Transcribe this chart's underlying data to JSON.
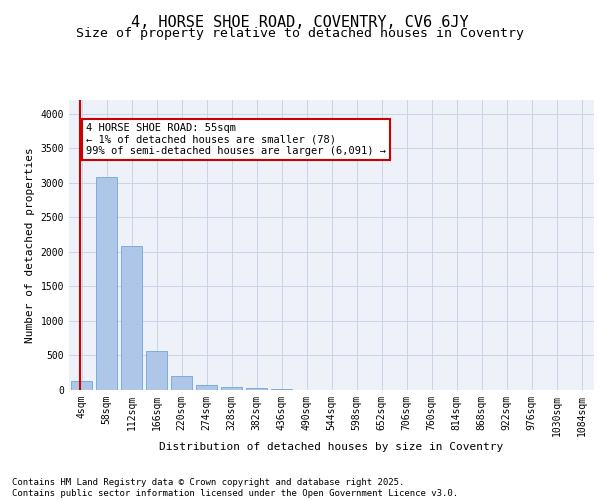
{
  "title": "4, HORSE SHOE ROAD, COVENTRY, CV6 6JY",
  "subtitle": "Size of property relative to detached houses in Coventry",
  "xlabel": "Distribution of detached houses by size in Coventry",
  "ylabel": "Number of detached properties",
  "categories": [
    "4sqm",
    "58sqm",
    "112sqm",
    "166sqm",
    "220sqm",
    "274sqm",
    "328sqm",
    "382sqm",
    "436sqm",
    "490sqm",
    "544sqm",
    "598sqm",
    "652sqm",
    "706sqm",
    "760sqm",
    "814sqm",
    "868sqm",
    "922sqm",
    "976sqm",
    "1030sqm",
    "1084sqm"
  ],
  "values": [
    130,
    3080,
    2080,
    560,
    210,
    75,
    45,
    30,
    20,
    0,
    0,
    0,
    0,
    0,
    0,
    0,
    0,
    0,
    0,
    0,
    0
  ],
  "bar_color": "#aec6e8",
  "bar_edge_color": "#5b9bd5",
  "grid_color": "#c8d4e8",
  "background_color": "#eef2f8",
  "vline_color": "#cc0000",
  "vline_x_index": 0.5,
  "annotation_text": "4 HORSE SHOE ROAD: 55sqm\n← 1% of detached houses are smaller (78)\n99% of semi-detached houses are larger (6,091) →",
  "annotation_box_edgecolor": "#cc0000",
  "ylim": [
    0,
    4200
  ],
  "yticks": [
    0,
    500,
    1000,
    1500,
    2000,
    2500,
    3000,
    3500,
    4000
  ],
  "footer_text": "Contains HM Land Registry data © Crown copyright and database right 2025.\nContains public sector information licensed under the Open Government Licence v3.0.",
  "title_fontsize": 11,
  "subtitle_fontsize": 9.5,
  "axis_label_fontsize": 8,
  "tick_fontsize": 7,
  "footer_fontsize": 6.5,
  "annotation_fontsize": 7.5
}
